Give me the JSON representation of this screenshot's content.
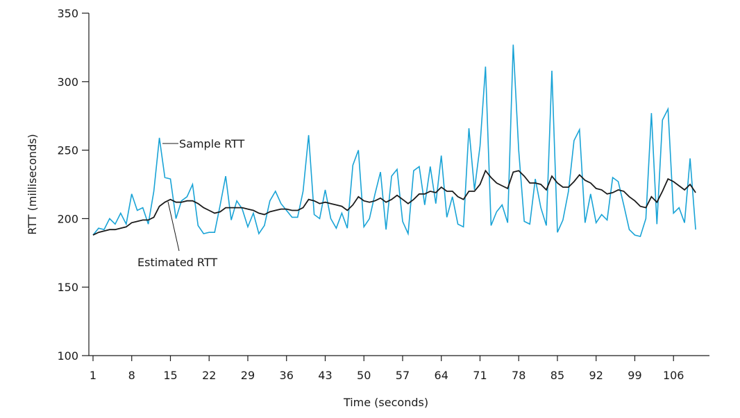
{
  "chart_data": {
    "type": "line",
    "xlabel": "Time (seconds)",
    "ylabel": "RTT (milliseconds)",
    "xlim": [
      1,
      112
    ],
    "ylim": [
      100,
      350
    ],
    "x_ticks": [
      1,
      8,
      15,
      22,
      29,
      36,
      43,
      50,
      57,
      64,
      71,
      78,
      85,
      92,
      99,
      106
    ],
    "y_ticks": [
      100,
      150,
      200,
      250,
      300,
      350
    ],
    "grid": false,
    "colors": {
      "sample": "#19a3d6",
      "estimated": "#1a1a1a",
      "axis": "#1a1a1a"
    },
    "series": [
      {
        "name": "Sample RTT",
        "values": [
          188,
          193,
          192,
          200,
          196,
          204,
          196,
          218,
          206,
          208,
          196,
          220,
          259,
          230,
          229,
          200,
          213,
          216,
          225,
          195,
          189,
          190,
          190,
          210,
          231,
          199,
          213,
          207,
          194,
          204,
          189,
          195,
          213,
          220,
          211,
          206,
          201,
          201,
          220,
          261,
          203,
          200,
          221,
          200,
          193,
          204,
          193,
          239,
          250,
          194,
          200,
          218,
          234,
          192,
          231,
          236,
          198,
          189,
          235,
          238,
          210,
          238,
          211,
          246,
          201,
          216,
          196,
          194,
          266,
          221,
          253,
          311,
          195,
          205,
          210,
          197,
          327,
          250,
          198,
          196,
          229,
          208,
          195,
          308,
          190,
          199,
          220,
          257,
          265,
          197,
          218,
          197,
          203,
          199,
          230,
          227,
          210,
          192,
          188,
          187,
          200,
          277,
          196,
          272,
          280,
          204,
          208,
          197,
          244,
          192
        ],
        "color": "#19a3d6"
      },
      {
        "name": "Estimated RTT",
        "values": [
          188,
          190,
          191,
          192,
          192,
          193,
          194,
          197,
          198,
          199,
          199,
          201,
          209,
          212,
          214,
          212,
          212,
          213,
          213,
          211,
          208,
          206,
          204,
          205,
          208,
          208,
          208,
          208,
          207,
          206,
          204,
          203,
          205,
          206,
          207,
          207,
          206,
          206,
          208,
          214,
          213,
          211,
          212,
          211,
          210,
          209,
          206,
          210,
          216,
          213,
          212,
          213,
          215,
          212,
          214,
          217,
          214,
          211,
          214,
          218,
          218,
          220,
          219,
          223,
          220,
          220,
          216,
          214,
          220,
          220,
          225,
          235,
          230,
          226,
          224,
          222,
          234,
          235,
          231,
          226,
          226,
          225,
          221,
          231,
          226,
          223,
          223,
          227,
          232,
          228,
          226,
          222,
          221,
          218,
          219,
          221,
          220,
          216,
          213,
          209,
          208,
          216,
          212,
          220,
          229,
          227,
          224,
          221,
          225,
          219
        ]
      }
    ],
    "annotations": {
      "sample_label": "Sample RTT",
      "estimated_label": "Estimated RTT"
    }
  }
}
